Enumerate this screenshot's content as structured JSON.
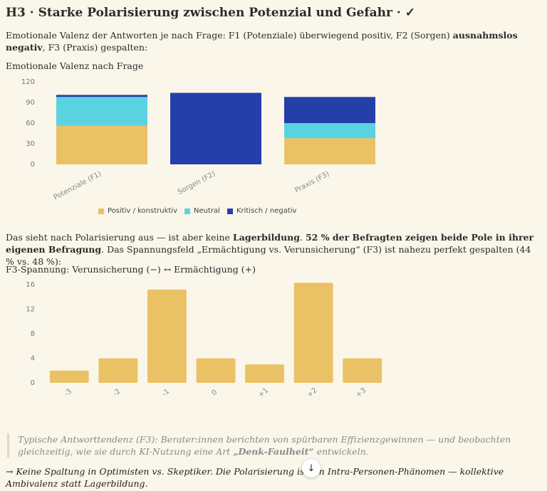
{
  "heading": "H3 · Starke Polarisierung zwischen Potenzial und Gefahr · ✓",
  "intro": {
    "pre": "Emotionale Valenz der Antworten je nach Frage: F1 (Potenziale) überwiegend positiv, F2 (Sorgen) ",
    "bold": "ausnahmslos negativ",
    "post": ", F3 (Praxis) gespalten:"
  },
  "middle": {
    "t1": "Das sieht nach Polarisierung aus — ist aber keine ",
    "b1": "Lagerbildung",
    "t2": ". ",
    "b2": "52 % der Befragten zeigen beide Pole in ihrer eigenen Befragung",
    "t3": ". Das Spannungsfeld „Ermächtigung vs. Verunsicherung“ (F3) ist nahezu perfekt gespalten (44 % vs. 48 %):"
  },
  "quote": {
    "pre": "Typische Antworttendenz (F3): Berater:innen berichten von spürbaren Effizienzgewinnen — und beobachten gleichzeitig, wie sie durch KI-Nutzung eine Art ",
    "bold": "„Denk-Faulheit“",
    "post": " entwickeln."
  },
  "conclusion": "→ Keine Spaltung in Optimisten vs. Skeptiker. Die Polarisierung ist ein Intra-Personen-Phänomen — kollektive Ambivalenz statt Lagerbildung.",
  "scroll_button": {
    "icon": "arrow-down-icon",
    "glyph": "↓"
  },
  "colors": {
    "positive": "#ebc166",
    "neutral": "#5ad3e0",
    "negative": "#253fa8",
    "bars2": "#ebc166",
    "background": "#fbf6ea"
  },
  "chart_data": [
    {
      "type": "bar",
      "stacked": true,
      "title": "Emotionale Valenz nach Frage",
      "categories": [
        "Potenziale (F1)",
        "Sorgen (F2)",
        "Praxis (F3)"
      ],
      "series": [
        {
          "name": "Positiv / konstruktiv",
          "values": [
            56,
            0,
            38
          ],
          "color": "#ebc166"
        },
        {
          "name": "Neutral",
          "values": [
            42,
            0,
            22
          ],
          "color": "#5ad3e0"
        },
        {
          "name": "Kritisch / negativ",
          "values": [
            3,
            104,
            38
          ],
          "color": "#253fa8"
        }
      ],
      "yticks": [
        "0",
        "30",
        "60",
        "90",
        "120"
      ],
      "ylim": [
        0,
        120
      ],
      "legend": "bottom",
      "grid": false
    },
    {
      "type": "bar",
      "title": "F3-Spannung: Verunsicherung (−) ↔ Ermächtigung (+)",
      "categories": [
        "-3",
        "-2",
        "-1",
        "0",
        "+1",
        "+2",
        "+3"
      ],
      "values": [
        2,
        4,
        15.2,
        4,
        3,
        16.3,
        4
      ],
      "yticks": [
        "0",
        "4",
        "8",
        "12",
        "16"
      ],
      "ylim": [
        0,
        16
      ],
      "grid": false
    }
  ]
}
